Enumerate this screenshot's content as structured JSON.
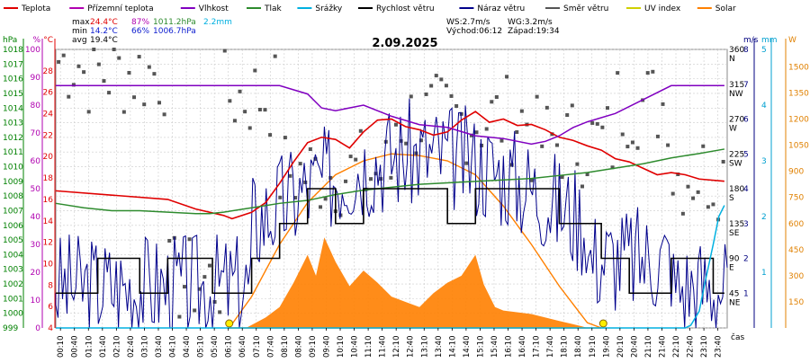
{
  "colors": {
    "teplota": "#e00000",
    "prizemni_teplota": "#b000b0",
    "vlhkost": "#8000c0",
    "tlak": "#2e8b2e",
    "srazky": "#00b0e0",
    "rychlost": "#000000",
    "naraz": "#00008b",
    "smer": "#555555",
    "uv": "#d0d000",
    "solar": "#ff8000",
    "grid": "#cccccc",
    "axis_hpa": "#008000",
    "axis_pct": "#b000b0",
    "axis_c": "#e00000",
    "axis_ms": "#000080",
    "axis_mm": "#00a0d0",
    "axis_w": "#e08000"
  },
  "legend": [
    {
      "key": "teplota",
      "label": "Teplota"
    },
    {
      "key": "prizemni_teplota",
      "label": "Přízemní teplota"
    },
    {
      "key": "vlhkost",
      "label": "Vlhkost"
    },
    {
      "key": "tlak",
      "label": "Tlak"
    },
    {
      "key": "srazky",
      "label": "Srážky"
    },
    {
      "key": "rychlost",
      "label": "Rychlost větru"
    },
    {
      "key": "naraz",
      "label": "Náraz větru"
    },
    {
      "key": "smer",
      "label": "Směr větru"
    },
    {
      "key": "uv",
      "label": "UV index"
    },
    {
      "key": "solar",
      "label": "Solar"
    }
  ],
  "stats": {
    "max_label": "max",
    "max_temp": "24.4°C",
    "max_hum": "87%",
    "max_press": "1011.2hPa",
    "rain": "2.2mm",
    "min_label": "min",
    "min_temp": "14.2°C",
    "min_hum": "66%",
    "min_press": "1006.7hPa",
    "avg_label": "avg",
    "avg_temp": "19.4°C",
    "ws": "WS:2.7m/s",
    "wg": "WG:3.2m/s",
    "sunrise": "Východ:06:12",
    "sunset": "Západ:19:34"
  },
  "chart_data": {
    "type": "line",
    "title": "2.09.2025",
    "xlabel": "čas",
    "x_ticks": [
      "00:10",
      "00:40",
      "01:10",
      "01:40",
      "02:10",
      "02:40",
      "03:10",
      "03:40",
      "04:10",
      "04:40",
      "05:10",
      "05:40",
      "06:10",
      "06:40",
      "07:10",
      "07:40",
      "08:10",
      "08:40",
      "09:10",
      "09:40",
      "10:10",
      "10:40",
      "11:10",
      "11:40",
      "12:10",
      "12:40",
      "13:10",
      "13:40",
      "14:10",
      "14:40",
      "15:10",
      "15:40",
      "16:10",
      "16:40",
      "17:10",
      "17:40",
      "18:10",
      "18:40",
      "19:10",
      "19:40",
      "20:10",
      "20:40",
      "21:10",
      "21:40",
      "22:10",
      "22:40",
      "23:10",
      "23:40"
    ],
    "axes": {
      "hpa": {
        "label": "hPa",
        "range": [
          999,
          1018
        ],
        "ticks": [
          "999",
          "1000",
          "1001",
          "1002",
          "1003",
          "1004",
          "1005",
          "1006",
          "1007",
          "1008",
          "1009",
          "1010",
          "1011",
          "1012",
          "1013",
          "1014",
          "1015",
          "1016",
          "1017",
          "1018"
        ]
      },
      "pct": {
        "label": "%",
        "range": [
          0,
          100
        ],
        "ticks": [
          "0",
          "10",
          "20",
          "30",
          "40",
          "50",
          "60",
          "70",
          "80",
          "90",
          "100"
        ]
      },
      "celsius": {
        "label": "°C",
        "range": [
          4,
          30
        ],
        "ticks": [
          "4",
          "6",
          "8",
          "10",
          "12",
          "14",
          "16",
          "18",
          "20",
          "22",
          "24",
          "26",
          "28"
        ]
      },
      "direction": {
        "range": [
          0,
          360
        ],
        "ticks": [
          "45",
          "90",
          "135",
          "180",
          "225",
          "270",
          "315",
          "360"
        ],
        "compass": [
          "NE",
          "E",
          "SE",
          "S",
          "SW",
          "W",
          "NW",
          "N"
        ]
      },
      "ms": {
        "label": "m/s",
        "range": [
          0,
          8
        ],
        "ticks": [
          "1",
          "2",
          "3",
          "4",
          "5",
          "6",
          "7",
          "8"
        ]
      },
      "mm": {
        "label": "mm",
        "range": [
          0,
          5
        ],
        "ticks": [
          "1",
          "2",
          "3",
          "4",
          "5"
        ]
      },
      "w": {
        "label": "W",
        "range": [
          0,
          1600
        ],
        "ticks": [
          "150",
          "300",
          "450",
          "600",
          "750",
          "900",
          "1050",
          "1200",
          "1350",
          "1500"
        ]
      }
    },
    "series": [
      {
        "name": "Teplota",
        "axis": "celsius",
        "x": [
          0,
          2,
          4,
          5,
          6,
          6.3,
          7,
          7.5,
          8,
          8.5,
          9,
          9.5,
          10,
          10.5,
          11,
          11.5,
          12,
          12.5,
          13,
          13.5,
          14,
          14.5,
          15,
          15.5,
          16,
          16.5,
          17,
          17.5,
          18,
          18.5,
          19,
          19.5,
          20,
          20.5,
          21,
          21.5,
          22,
          22.5,
          23,
          23.9
        ],
        "values": [
          16.8,
          16.4,
          16.0,
          15.1,
          14.5,
          14.2,
          14.8,
          15.7,
          17.5,
          19.5,
          21.3,
          21.8,
          21.6,
          20.8,
          22.3,
          23.4,
          23.5,
          22.8,
          22.5,
          22.0,
          22.3,
          23.4,
          24.2,
          23.2,
          23.5,
          22.9,
          23.0,
          22.5,
          21.8,
          21.5,
          21.0,
          20.6,
          19.8,
          19.5,
          18.9,
          18.3,
          18.5,
          18.3,
          17.9,
          17.7
        ]
      },
      {
        "name": "Tlak",
        "axis": "hpa",
        "x": [
          0,
          1,
          2,
          3,
          4,
          5,
          5.5,
          6,
          7,
          8,
          9,
          10,
          11,
          12,
          13,
          14,
          15,
          16,
          17,
          18,
          19,
          20,
          21,
          22,
          23,
          23.9
        ],
        "values": [
          1007.5,
          1007.2,
          1007.0,
          1007.0,
          1006.9,
          1006.8,
          1006.8,
          1006.9,
          1007.2,
          1007.5,
          1007.7,
          1008.1,
          1008.4,
          1008.6,
          1008.8,
          1008.9,
          1009.0,
          1009.1,
          1009.2,
          1009.4,
          1009.6,
          1009.9,
          1010.2,
          1010.6,
          1010.9,
          1011.2
        ]
      },
      {
        "name": "Vlhkost",
        "axis": "pct",
        "x": [
          0,
          2,
          4,
          6,
          7,
          8,
          9,
          9.5,
          10,
          11,
          12,
          13,
          14,
          15,
          16,
          17,
          17.5,
          18,
          18.5,
          19,
          20,
          21,
          22,
          23,
          23.9
        ],
        "values": [
          87,
          87,
          87,
          87,
          87,
          87,
          84,
          79,
          78,
          80,
          76,
          73,
          72,
          69,
          68,
          66,
          67,
          69,
          72,
          74,
          77,
          82,
          87,
          87,
          87
        ]
      },
      {
        "name": "Rychlost větru",
        "axis": "ms",
        "x": [
          0,
          1,
          1.3,
          1.5,
          2.5,
          3,
          4,
          5,
          5.6,
          6,
          6.8,
          7,
          8,
          8.5,
          9,
          9.5,
          10,
          11,
          12,
          13,
          14,
          15,
          16,
          17,
          18,
          19,
          19.5,
          20,
          20.5,
          21,
          22,
          23,
          23.5,
          23.9
        ],
        "values": [
          1,
          1,
          1,
          2,
          2,
          1,
          2,
          2,
          1,
          1,
          1,
          2,
          3,
          3,
          4,
          4,
          3,
          4,
          4,
          4,
          3,
          4,
          4,
          4,
          3,
          3,
          2,
          2,
          1,
          1,
          2,
          2,
          1,
          1
        ]
      },
      {
        "name": "Srážky",
        "axis": "mm",
        "x": [
          0,
          22.5,
          22.7,
          23.0,
          23.2,
          23.5,
          23.7,
          23.9
        ],
        "values": [
          0,
          0,
          0.05,
          0.3,
          0.8,
          1.5,
          2.0,
          2.2
        ]
      },
      {
        "name": "Solar",
        "axis": "w",
        "x": [
          6.2,
          7,
          8,
          9,
          10,
          11,
          12,
          13,
          14,
          15,
          16,
          17,
          18,
          19,
          19.5
        ],
        "values": [
          0,
          180,
          480,
          720,
          880,
          960,
          1000,
          990,
          960,
          880,
          700,
          480,
          240,
          30,
          0
        ]
      }
    ]
  }
}
